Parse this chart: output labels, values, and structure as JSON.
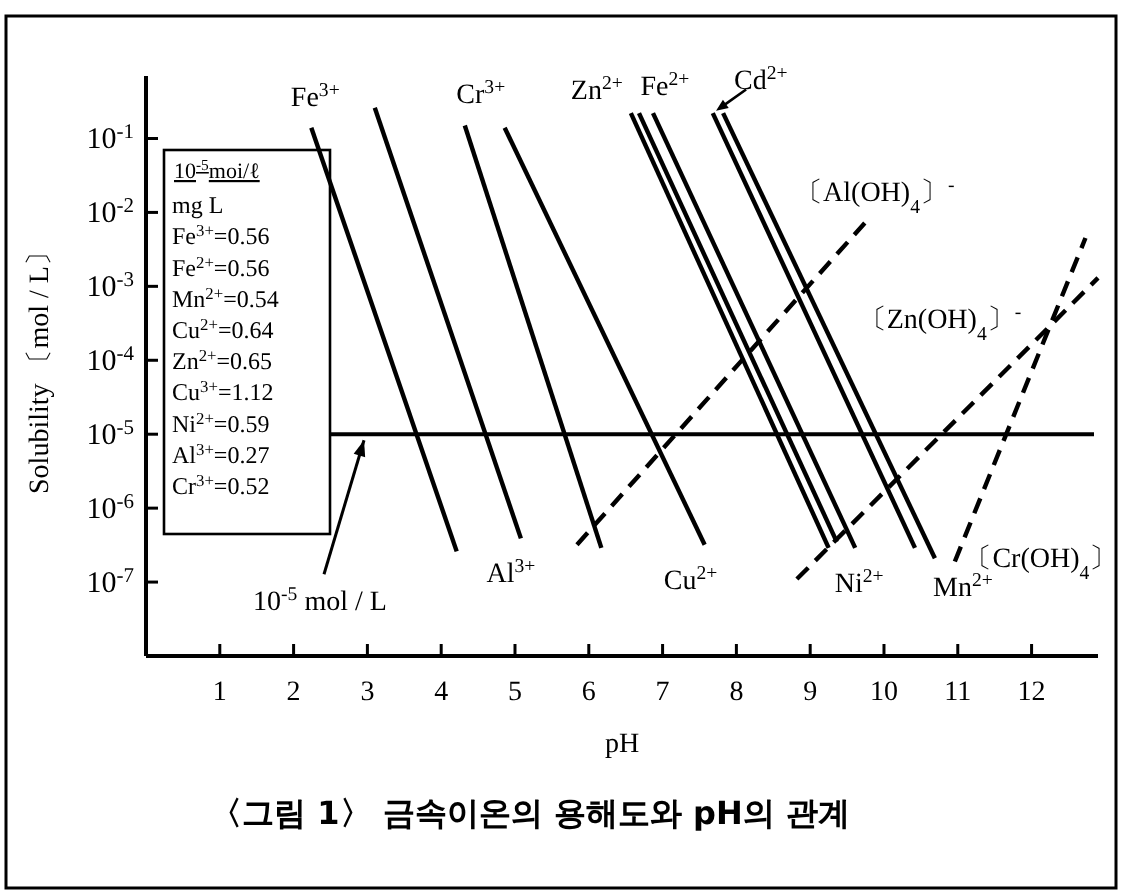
{
  "chart_data": {
    "type": "line",
    "title": "〈그림 1〉 금속이온의 용해도와 pH의 관계",
    "xlabel": "pH",
    "ylabel": "Solubility 〔mol / L〕",
    "log": "y",
    "line_style": "solid",
    "xlim": [
      0,
      12.9
    ],
    "ylim": [
      1e-08,
      0.7
    ],
    "xticks": [
      1,
      2,
      3,
      4,
      5,
      6,
      7,
      8,
      9,
      10,
      11,
      12
    ],
    "yticks": [
      {
        "value": 0.1,
        "label": "10$^{-1}$"
      },
      {
        "value": 0.01,
        "label": "10$^{-2}$"
      },
      {
        "value": 0.001,
        "label": "10$^{-3}$"
      },
      {
        "value": 0.0001,
        "label": "10$^{-4}$"
      },
      {
        "value": 1e-05,
        "label": "10$^{-5}$"
      },
      {
        "value": 1e-06,
        "label": "10$^{-6}$"
      },
      {
        "value": 1e-07,
        "label": "10$^{-7}$"
      }
    ],
    "series": [
      {
        "name": "Fe$^{3+}$",
        "color": "#000000",
        "x": [
          2.24,
          4.21
        ],
        "values": [
          0.14,
          2.6e-07
        ]
      },
      {
        "name": "Al$^{3+}$",
        "color": "#000000",
        "x": [
          3.1,
          5.08
        ],
        "values": [
          0.26,
          3.9e-07
        ]
      },
      {
        "name": "Cr$^{3+}$",
        "color": "#000000",
        "x": [
          4.32,
          6.17
        ],
        "values": [
          0.15,
          2.9e-07
        ]
      },
      {
        "name": "Cu$^{2+}$",
        "color": "#000000",
        "x": [
          4.86,
          7.57
        ],
        "values": [
          0.14,
          3.2e-07
        ]
      },
      {
        "name": "Zn$^{2+}$",
        "color": "#000000",
        "x": [
          6.57,
          9.25
        ],
        "values": [
          0.22,
          2.9e-07
        ]
      },
      {
        "name": "Fe$^{2+}$",
        "color": "#000000",
        "x": [
          6.68,
          9.36
        ],
        "values": [
          0.22,
          3.5e-07
        ]
      },
      {
        "name": "Ni$^{2+}$",
        "color": "#000000",
        "x": [
          6.87,
          9.61
        ],
        "values": [
          0.22,
          2.9e-07
        ]
      },
      {
        "name": "Cd$^{2+}$",
        "color": "#000000",
        "x": [
          7.68,
          10.42
        ],
        "values": [
          0.22,
          2.9e-07
        ]
      },
      {
        "name": "Mn$^{2+}$",
        "color": "#000000",
        "x": [
          7.82,
          10.69
        ],
        "values": [
          0.22,
          2.1e-07
        ]
      },
      {
        "name": "〔Al(OH)$_{4}$〕$^{-}$",
        "color": "#000000",
        "line_style": "dashed",
        "x": [
          5.84,
          9.74
        ],
        "values": [
          3.2e-07,
          0.0072
        ]
      },
      {
        "name": "〔Zn(OH)$_{4}$〕$^{-}$",
        "color": "#000000",
        "line_style": "dashed",
        "x": [
          8.82,
          12.9
        ],
        "values": [
          1.1e-07,
          0.0013
        ]
      },
      {
        "name": "〔Cr(OH)$_{4}$〕",
        "color": "#000000",
        "line_style": "dashed",
        "x": [
          10.96,
          12.73
        ],
        "values": [
          1.9e-07,
          0.0045
        ]
      }
    ],
    "ref_lines": [
      {
        "axis": "y",
        "value": 1e-05,
        "label": "10$^{-5}$ mol / L"
      }
    ],
    "annotations": [
      "10$^{-5}$moi/ℓ",
      "mg L",
      "Fe$^{3+}$=0.56",
      "Fe$^{2+}$=0.56",
      "Mn$^{2+}$=0.54",
      "Cu$^{2+}$=0.64",
      "Zn$^{2+}$=0.65",
      "Cu$^{3+}$=1.12",
      "Ni$^{2+}$=0.59",
      "Al$^{3+}$=0.27",
      "Cr$^{3+}$=0.52"
    ]
  }
}
